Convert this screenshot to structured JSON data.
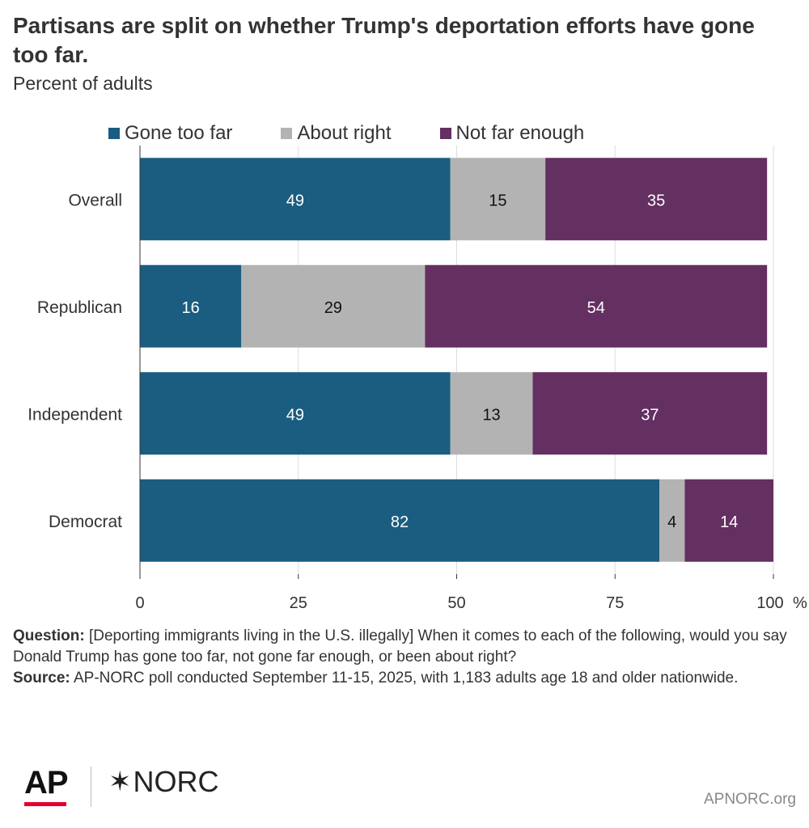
{
  "header": {
    "title": "Partisans are split on whether Trump's deportation efforts have gone too far.",
    "subtitle": "Percent of adults"
  },
  "legend": [
    {
      "label": "Gone too far",
      "color": "#1a5d80"
    },
    {
      "label": "About right",
      "color": "#b3b3b3"
    },
    {
      "label": "Not far enough",
      "color": "#642f61"
    }
  ],
  "chart_data": {
    "type": "bar",
    "orientation": "horizontal",
    "stacked": true,
    "categories": [
      "Overall",
      "Republican",
      "Independent",
      "Democrat"
    ],
    "series": [
      {
        "name": "Gone too far",
        "color": "#1a5d80",
        "label_color": "#ffffff",
        "values": [
          49,
          16,
          49,
          82
        ]
      },
      {
        "name": "About right",
        "color": "#b3b3b3",
        "label_color": "#111111",
        "values": [
          15,
          29,
          13,
          4
        ]
      },
      {
        "name": "Not far enough",
        "color": "#642f61",
        "label_color": "#ffffff",
        "values": [
          35,
          54,
          37,
          14
        ]
      }
    ],
    "xlim": [
      0,
      100
    ],
    "xticks": [
      0,
      25,
      50,
      75,
      100
    ],
    "xtick_labels": [
      "0",
      "25",
      "50",
      "75",
      "100"
    ],
    "x_unit": "%",
    "grid": true,
    "legend_position": "top"
  },
  "footnote": {
    "question_label": "Question:",
    "question_text": "[Deporting immigrants living in the U.S. illegally] When it comes to each of the following, would you say Donald Trump has gone too far, not gone far enough, or been about right?",
    "source_label": "Source:",
    "source_text": "AP-NORC poll conducted September 11-15, 2025, with 1,183 adults age 18 and older nationwide."
  },
  "branding": {
    "ap": "AP",
    "norc_star": "✶",
    "norc": "NORC",
    "site": "APNORC.org"
  }
}
